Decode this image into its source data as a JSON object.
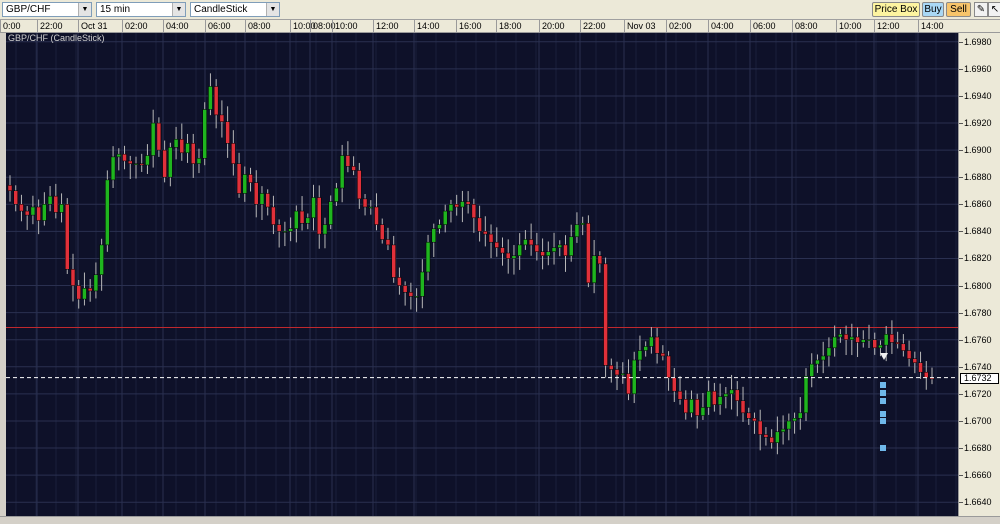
{
  "toolbar": {
    "symbol": "GBP/CHF",
    "interval": "15 min",
    "chart_type": "CandleStick",
    "price_box": "Price Box",
    "buy": "Buy",
    "sell": "Sell",
    "tool_icon_1": "pencil-icon",
    "tool_icon_2": "pointer-icon"
  },
  "chart": {
    "title": "GBP/CHF (CandleStick)",
    "current_price": "1.6732",
    "colors": {
      "bg": "#0e1129",
      "up": "#1fb51f",
      "down": "#e0303a",
      "grid": "#2a3050"
    }
  },
  "time_labels": [
    "0:00",
    "22:00",
    "Oct 31",
    "02:00",
    "04:00",
    "06:00",
    "08:00",
    "10:00",
    "08:00",
    "10:00",
    "12:00",
    "14:00",
    "16:00",
    "18:00",
    "20:00",
    "22:00",
    "Nov 03",
    "02:00",
    "04:00",
    "06:00",
    "08:00",
    "10:00",
    "12:00",
    "14:00"
  ],
  "price_labels": [
    "1.6980",
    "1.6960",
    "1.6940",
    "1.6920",
    "1.6900",
    "1.6880",
    "1.6860",
    "1.6840",
    "1.6820",
    "1.6800",
    "1.6780",
    "1.6760",
    "1.6740",
    "1.6720",
    "1.6700",
    "1.6680",
    "1.6660",
    "1.6640"
  ],
  "chart_data": {
    "type": "candlestick",
    "ylim": [
      1.6635,
      1.6985
    ],
    "resistance_line": 1.6769,
    "current_price": 1.6732,
    "closes": [
      1.687,
      1.686,
      1.6855,
      1.6852,
      1.6858,
      1.6848,
      1.686,
      1.6866,
      1.6854,
      1.686,
      1.6812,
      1.68,
      1.679,
      1.6798,
      1.6796,
      1.6808,
      1.683,
      1.6878,
      1.6895,
      1.6897,
      1.6892,
      1.689,
      1.689,
      1.6889,
      1.6896,
      1.692,
      1.69,
      1.688,
      1.6902,
      1.6908,
      1.6898,
      1.6905,
      1.689,
      1.6894,
      1.693,
      1.6947,
      1.6926,
      1.6921,
      1.6905,
      1.689,
      1.6868,
      1.6882,
      1.6876,
      1.686,
      1.6868,
      1.6858,
      1.6845,
      1.684,
      1.684,
      1.6842,
      1.6855,
      1.6846,
      1.685,
      1.6865,
      1.6838,
      1.6845,
      1.6862,
      1.6872,
      1.6896,
      1.6888,
      1.6885,
      1.6864,
      1.6858,
      1.6858,
      1.6845,
      1.6834,
      1.683,
      1.6806,
      1.68,
      1.6795,
      1.6792,
      1.6792,
      1.681,
      1.6832,
      1.6842,
      1.6845,
      1.6855,
      1.686,
      1.6858,
      1.6862,
      1.686,
      1.685,
      1.684,
      1.6838,
      1.6832,
      1.6828,
      1.6824,
      1.682,
      1.6822,
      1.683,
      1.6834,
      1.683,
      1.6825,
      1.6822,
      1.6825,
      1.6828,
      1.683,
      1.6822,
      1.6836,
      1.6845,
      1.6846,
      1.6802,
      1.6822,
      1.6816,
      1.6741,
      1.6738,
      1.6734,
      1.6735,
      1.672,
      1.6745,
      1.6752,
      1.6755,
      1.6762,
      1.675,
      1.6748,
      1.6732,
      1.6722,
      1.6716,
      1.6706,
      1.6716,
      1.6704,
      1.671,
      1.6722,
      1.6712,
      1.6718,
      1.672,
      1.6723,
      1.6715,
      1.6706,
      1.6702,
      1.67,
      1.669,
      1.6688,
      1.6684,
      1.6692,
      1.6694,
      1.67,
      1.6702,
      1.6706,
      1.6733,
      1.6742,
      1.6745,
      1.6748,
      1.6754,
      1.6762,
      1.6764,
      1.676,
      1.6762,
      1.6758,
      1.676,
      1.676,
      1.6754,
      1.6756,
      1.6764,
      1.6758,
      1.6757,
      1.6752,
      1.6746,
      1.6743,
      1.6736,
      1.6732,
      1.6731
    ]
  }
}
